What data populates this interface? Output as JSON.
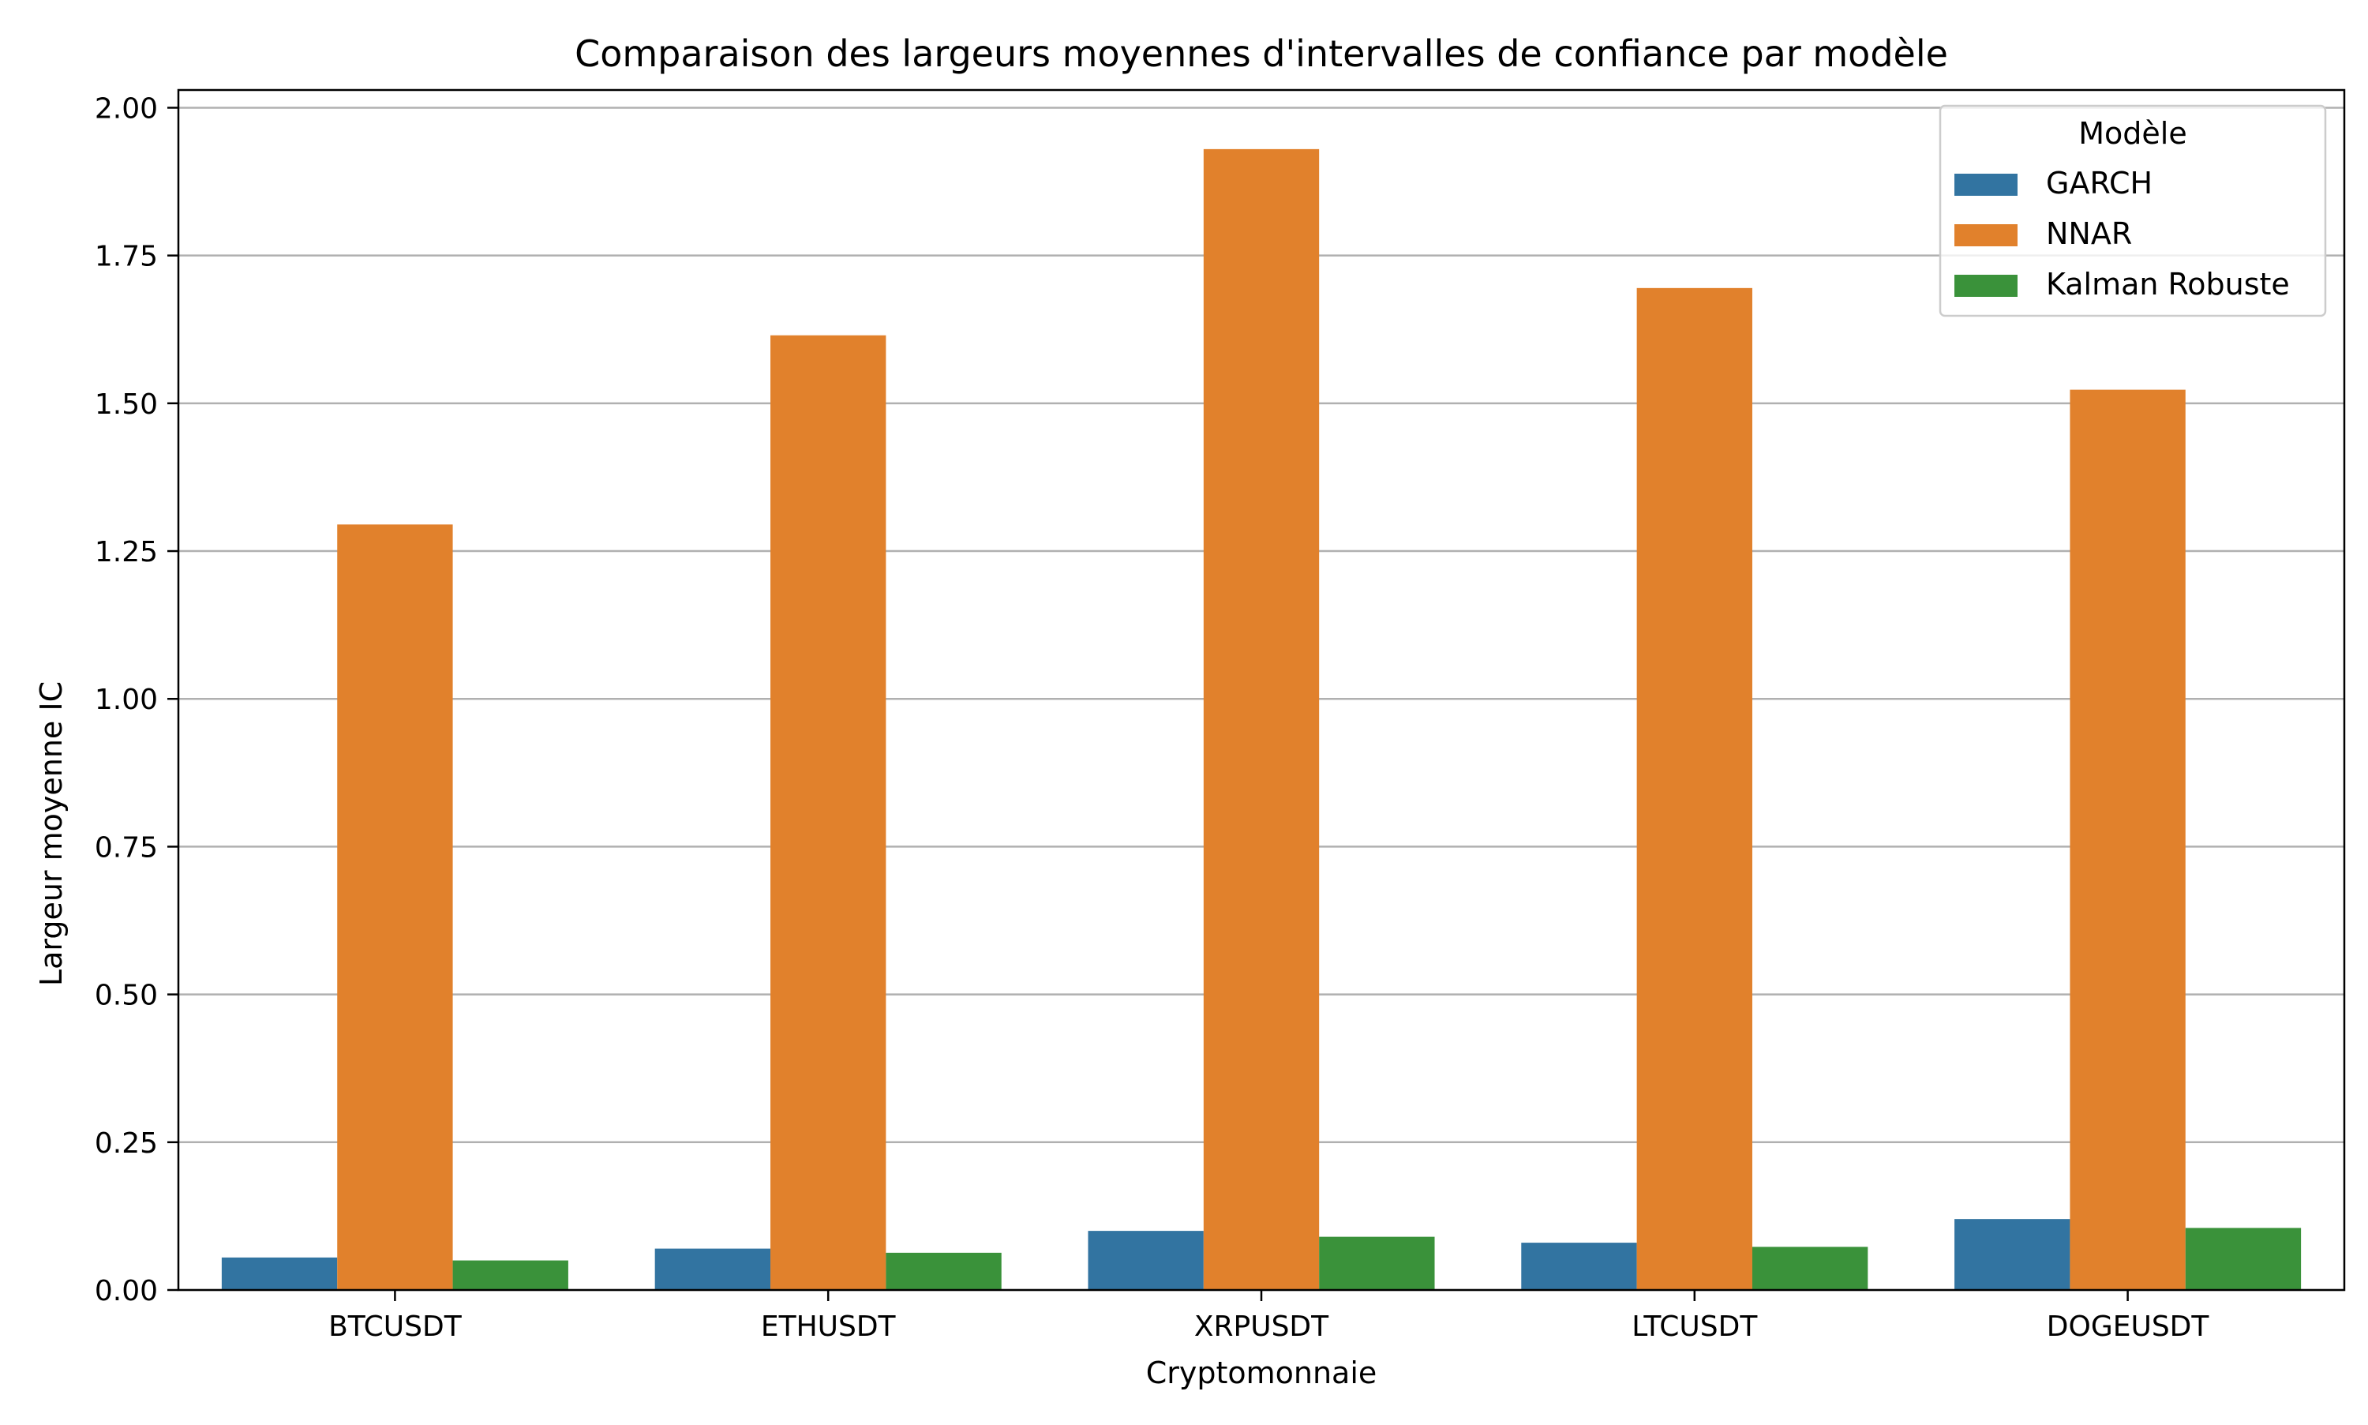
{
  "chart_data": {
    "type": "bar",
    "title": "Comparaison des largeurs moyennes d'intervalles de confiance par modèle",
    "xlabel": "Cryptomonnaie",
    "ylabel": "Largeur moyenne IC",
    "categories": [
      "BTCUSDT",
      "ETHUSDT",
      "XRPUSDT",
      "LTCUSDT",
      "DOGEUSDT"
    ],
    "series": [
      {
        "name": "GARCH",
        "color": "#3274a1",
        "values": [
          0.055,
          0.07,
          0.1,
          0.08,
          0.12
        ]
      },
      {
        "name": "NNAR",
        "color": "#e1812c",
        "values": [
          1.295,
          1.615,
          1.93,
          1.695,
          1.523
        ]
      },
      {
        "name": "Kalman Robuste",
        "color": "#3a923a",
        "values": [
          0.05,
          0.063,
          0.09,
          0.073,
          0.105
        ]
      }
    ],
    "ylim": [
      0,
      2.03
    ],
    "yticks": [
      0.0,
      0.25,
      0.5,
      0.75,
      1.0,
      1.25,
      1.5,
      1.75,
      2.0
    ],
    "ytick_labels": [
      "0.00",
      "0.25",
      "0.50",
      "0.75",
      "1.00",
      "1.25",
      "1.50",
      "1.75",
      "2.00"
    ],
    "grid": "horizontal",
    "legend": {
      "title": "Modèle",
      "position": "top-right"
    }
  }
}
